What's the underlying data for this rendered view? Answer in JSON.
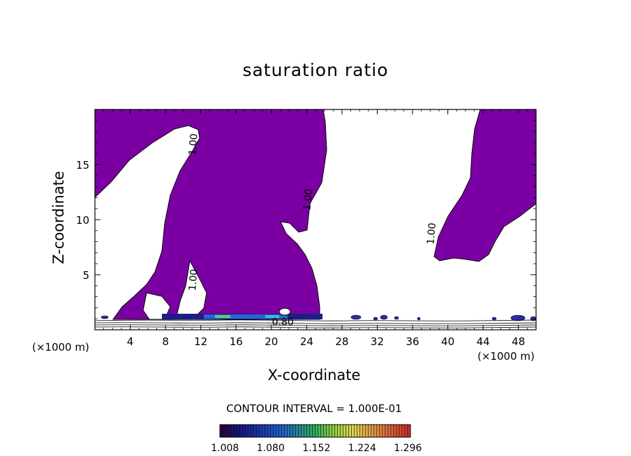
{
  "chart_data": {
    "type": "contour",
    "title": "saturation ratio",
    "xlabel": "X-coordinate",
    "ylabel": "Z-coordinate",
    "x_unit": "(×1000 m)",
    "y_unit": "(×1000 m)",
    "xlim": [
      0,
      50
    ],
    "ylim": [
      0,
      20
    ],
    "xticks": [
      4,
      8,
      12,
      16,
      20,
      24,
      28,
      32,
      36,
      40,
      44,
      48
    ],
    "yticks": [
      5,
      10,
      15
    ],
    "contour_labels": [
      {
        "text": "1.00",
        "x": 11.5,
        "z": 16.8
      },
      {
        "text": "1.00",
        "x": 24.5,
        "z": 11.8
      },
      {
        "text": "1.00",
        "x": 38.5,
        "z": 8.7
      },
      {
        "text": "1.00",
        "x": 11.5,
        "z": 4.5
      },
      {
        "text": "0.80",
        "x": 21.3,
        "z": 0.4
      }
    ],
    "contour_interval": "CONTOUR INTERVAL = 1.000E-01",
    "colorbar": {
      "min": 1.0,
      "max": 1.3,
      "ticks": [
        "1.008",
        "1.080",
        "1.152",
        "1.224",
        "1.296"
      ]
    },
    "fill_color": "#7b00a3"
  }
}
